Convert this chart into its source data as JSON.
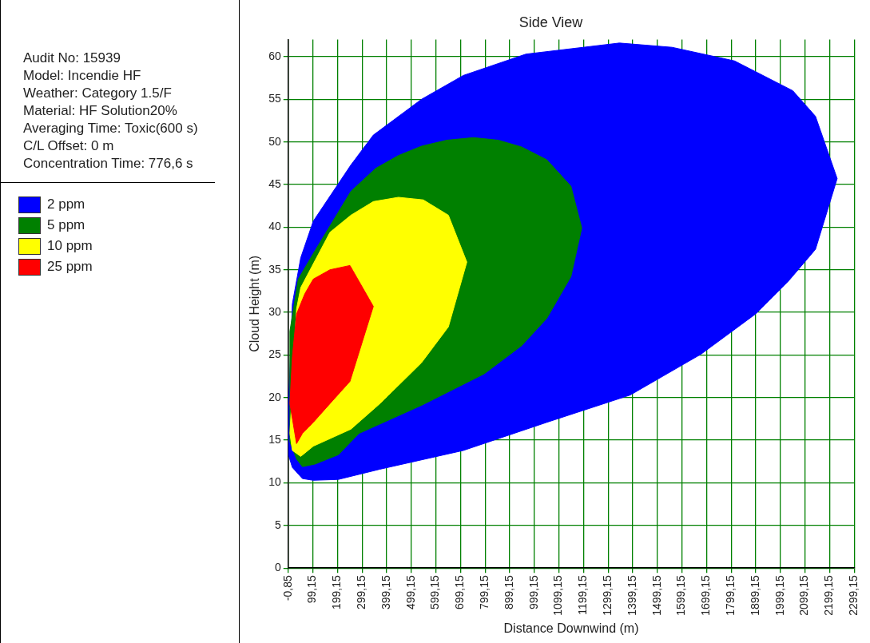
{
  "chart_data": {
    "type": "area",
    "title": "Side View",
    "xlabel": "Distance Downwind (m)",
    "ylabel": "Cloud Height (m)",
    "annotations": [
      "Audit No: 15939",
      "Model: Incendie HF",
      "Weather: Category 1.5/F",
      "Material: HF Solution20%",
      "Averaging Time: Toxic(600 s)",
      "C/L Offset: 0 m",
      "Concentration Time: 776,6 s"
    ],
    "xlim": [
      -0.85,
      2299.15
    ],
    "xticks": [
      {
        "value": -0.85,
        "label": "-0,85"
      },
      {
        "value": 99.15,
        "label": "99,15"
      },
      {
        "value": 199.15,
        "label": "199,15"
      },
      {
        "value": 299.15,
        "label": "299,15"
      },
      {
        "value": 399.15,
        "label": "399,15"
      },
      {
        "value": 499.15,
        "label": "499,15"
      },
      {
        "value": 599.15,
        "label": "599,15"
      },
      {
        "value": 699.15,
        "label": "699,15"
      },
      {
        "value": 799.15,
        "label": "799,15"
      },
      {
        "value": 899.15,
        "label": "899,15"
      },
      {
        "value": 999.15,
        "label": "999,15"
      },
      {
        "value": 1099.15,
        "label": "1099,15"
      },
      {
        "value": 1199.15,
        "label": "1199,15"
      },
      {
        "value": 1299.15,
        "label": "1299,15"
      },
      {
        "value": 1399.15,
        "label": "1399,15"
      },
      {
        "value": 1499.15,
        "label": "1499,15"
      },
      {
        "value": 1599.15,
        "label": "1599,15"
      },
      {
        "value": 1699.15,
        "label": "1699,15"
      },
      {
        "value": 1799.15,
        "label": "1799,15"
      },
      {
        "value": 1899.15,
        "label": "1899,15"
      },
      {
        "value": 1999.15,
        "label": "1999,15"
      },
      {
        "value": 2099.15,
        "label": "2099,15"
      },
      {
        "value": 2199.15,
        "label": "2199,15"
      },
      {
        "value": 2299.15,
        "label": "2299,15"
      }
    ],
    "ylim": [
      0,
      62
    ],
    "yticks": [
      0,
      5,
      10,
      15,
      20,
      25,
      30,
      35,
      40,
      45,
      50,
      55,
      60
    ],
    "grid": true,
    "legend": "left",
    "series": [
      {
        "name": "2 ppm",
        "color": "#0000ff",
        "x": [
          0,
          16,
          50,
          101,
          254,
          345,
          541,
          711,
          965,
          1345,
          1559,
          1813,
          2050,
          2142,
          2230,
          2142,
          2033,
          1898,
          1677,
          1389,
          1050,
          711,
          372,
          203,
          101,
          57,
          16,
          0,
          0
        ],
        "values": [
          18.8,
          31,
          36.4,
          40.7,
          47.3,
          50.8,
          55,
          57.8,
          60.3,
          61.6,
          61.1,
          59.5,
          56,
          53,
          45.7,
          37.4,
          33.7,
          29.8,
          25.1,
          20.3,
          17.1,
          13.8,
          11.6,
          10.4,
          10.3,
          10.5,
          11.8,
          13.3,
          18.8
        ]
      },
      {
        "name": "5 ppm",
        "color": "#008000",
        "x": [
          6,
          40,
          101,
          254,
          355,
          447,
          541,
          643,
          752,
          853,
          948,
          1050,
          1148,
          1192,
          1148,
          1050,
          948,
          796,
          541,
          287,
          203,
          108,
          57,
          33,
          6,
          6
        ],
        "values": [
          27.8,
          33.9,
          36.9,
          44.2,
          46.9,
          48.4,
          49.5,
          50.2,
          50.5,
          50.2,
          49.4,
          47.9,
          44.8,
          39.9,
          34.2,
          29.3,
          26.1,
          22.8,
          19.1,
          15.8,
          13.3,
          12.2,
          11.9,
          12.8,
          14.8,
          27.8
        ]
      },
      {
        "name": "10 ppm",
        "color": "#ffff00",
        "x": [
          33,
          50,
          169,
          254,
          345,
          447,
          548,
          650,
          725,
          650,
          541,
          372,
          254,
          101,
          50,
          16,
          6,
          33
        ],
        "values": [
          30.4,
          32.9,
          39.4,
          41.4,
          43,
          43.5,
          43.2,
          41.4,
          35.9,
          28.3,
          24.1,
          19.3,
          16.3,
          14.3,
          13.1,
          13.8,
          15.8,
          30.4
        ]
      },
      {
        "name": "25 ppm",
        "color": "#ff0000",
        "x": [
          6,
          16,
          33,
          67,
          101,
          169,
          250,
          345,
          250,
          169,
          101,
          57,
          33,
          6
        ],
        "values": [
          19.3,
          24.8,
          29.8,
          32.2,
          33.9,
          35,
          35.5,
          30.7,
          21.9,
          19.3,
          17.1,
          15.8,
          14.6,
          19.3
        ]
      }
    ]
  }
}
